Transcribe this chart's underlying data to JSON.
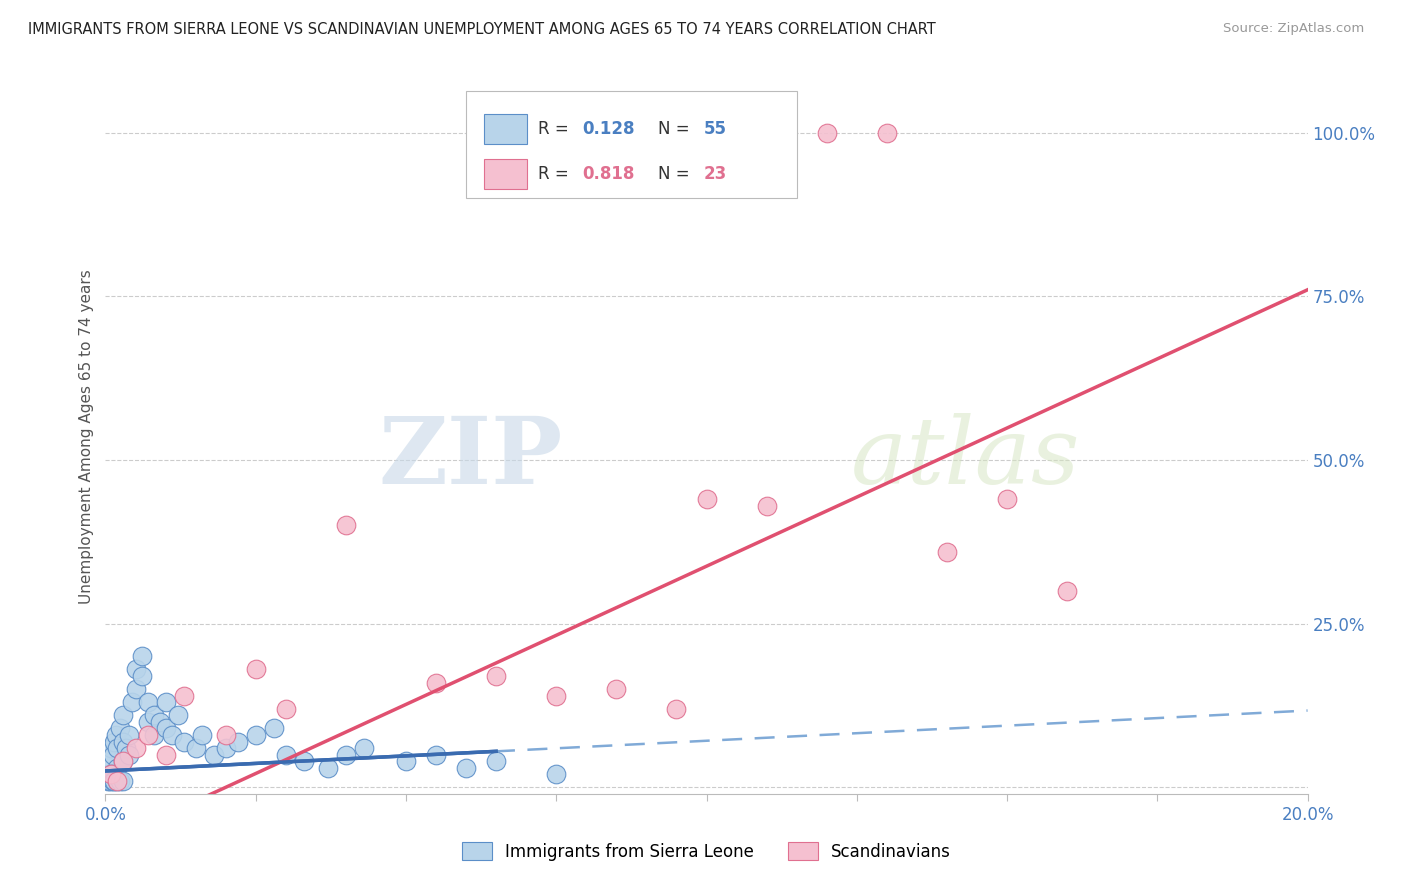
{
  "title": "IMMIGRANTS FROM SIERRA LEONE VS SCANDINAVIAN UNEMPLOYMENT AMONG AGES 65 TO 74 YEARS CORRELATION CHART",
  "source": "Source: ZipAtlas.com",
  "ylabel": "Unemployment Among Ages 65 to 74 years",
  "ytick_labels": [
    "",
    "25.0%",
    "50.0%",
    "75.0%",
    "100.0%"
  ],
  "ytick_values": [
    0.0,
    0.25,
    0.5,
    0.75,
    1.0
  ],
  "xlim": [
    0.0,
    0.2
  ],
  "ylim": [
    -0.01,
    1.08
  ],
  "blue_color": "#b8d4ea",
  "blue_edge_color": "#5b8ec8",
  "pink_color": "#f5c0d0",
  "pink_edge_color": "#e07090",
  "line_blue_color": "#3a6bb0",
  "line_pink_color": "#e05070",
  "line_blue_dash_color": "#6a9bd0",
  "blue_x": [
    0.0005,
    0.001,
    0.001,
    0.0012,
    0.0015,
    0.0018,
    0.002,
    0.002,
    0.0025,
    0.003,
    0.003,
    0.003,
    0.0035,
    0.004,
    0.004,
    0.0045,
    0.005,
    0.005,
    0.006,
    0.006,
    0.007,
    0.007,
    0.008,
    0.008,
    0.009,
    0.01,
    0.01,
    0.011,
    0.012,
    0.013,
    0.015,
    0.016,
    0.018,
    0.02,
    0.022,
    0.025,
    0.028,
    0.03,
    0.033,
    0.037,
    0.04,
    0.043,
    0.05,
    0.055,
    0.06,
    0.065,
    0.0005,
    0.0008,
    0.001,
    0.0012,
    0.0015,
    0.002,
    0.0025,
    0.003,
    0.075
  ],
  "blue_y": [
    0.02,
    0.04,
    0.06,
    0.05,
    0.07,
    0.08,
    0.03,
    0.06,
    0.09,
    0.04,
    0.07,
    0.11,
    0.06,
    0.05,
    0.08,
    0.13,
    0.15,
    0.18,
    0.17,
    0.2,
    0.1,
    0.13,
    0.11,
    0.08,
    0.1,
    0.09,
    0.13,
    0.08,
    0.11,
    0.07,
    0.06,
    0.08,
    0.05,
    0.06,
    0.07,
    0.08,
    0.09,
    0.05,
    0.04,
    0.03,
    0.05,
    0.06,
    0.04,
    0.05,
    0.03,
    0.04,
    0.01,
    0.01,
    0.02,
    0.01,
    0.01,
    0.01,
    0.01,
    0.01,
    0.02
  ],
  "pink_x": [
    0.001,
    0.002,
    0.003,
    0.005,
    0.007,
    0.01,
    0.013,
    0.02,
    0.025,
    0.03,
    0.04,
    0.055,
    0.065,
    0.075,
    0.085,
    0.095,
    0.1,
    0.11,
    0.12,
    0.13,
    0.14,
    0.15,
    0.16
  ],
  "pink_y": [
    0.02,
    0.01,
    0.04,
    0.06,
    0.08,
    0.05,
    0.14,
    0.08,
    0.18,
    0.12,
    0.4,
    0.16,
    0.17,
    0.14,
    0.15,
    0.12,
    0.44,
    0.43,
    1.0,
    1.0,
    0.36,
    0.44,
    0.3
  ],
  "watermark_zip": "ZIP",
  "watermark_atlas": "atlas",
  "bg": "#ffffff"
}
